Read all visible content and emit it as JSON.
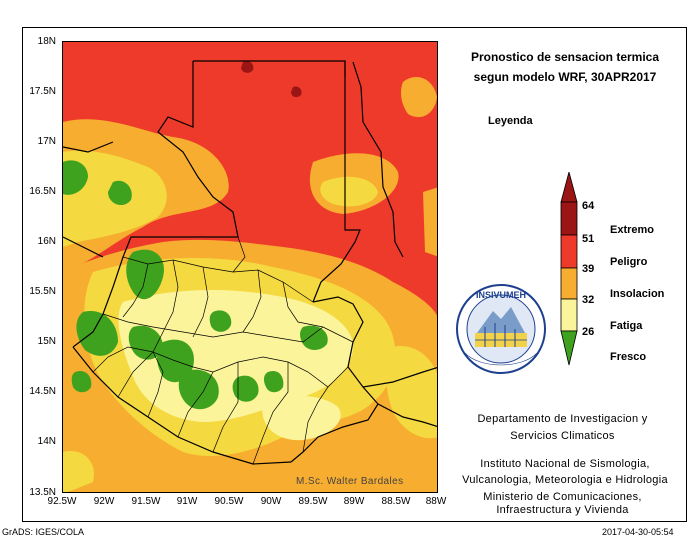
{
  "map": {
    "y_ticks": [
      "18N",
      "17.5N",
      "17N",
      "16.5N",
      "16N",
      "15.5N",
      "15N",
      "14.5N",
      "14N",
      "13.5N"
    ],
    "x_ticks": [
      "92.5W",
      "92W",
      "91.5W",
      "91W",
      "90.5W",
      "90W",
      "89.5W",
      "89W",
      "88.5W",
      "88W"
    ],
    "colors": {
      "extremo": "#9b1515",
      "peligro": "#ee3a2a",
      "insolacion": "#f7ad2f",
      "fatiga": "#f5d940",
      "fatiga_light": "#fbf49a",
      "fresco": "#3fa21e",
      "border": "#000000"
    }
  },
  "title": {
    "line1": "Pronostico de sensacion termica",
    "line2": "segun modelo WRF, 30APR2017"
  },
  "legend": {
    "title": "Leyenda",
    "values": [
      "64",
      "51",
      "39",
      "32",
      "26"
    ],
    "categories": [
      "Extremo",
      "Peligro",
      "Insolacion",
      "Fatiga",
      "Fresco"
    ]
  },
  "logo": {
    "text": "INSIVUMEH"
  },
  "info": {
    "dept_line1": "Departamento de Investigacion y",
    "dept_line2": "Servicios Climaticos",
    "inst_line1": "Instituto Nacional de Sismologia,",
    "inst_line2": "Vulcanologia, Meteorologia e Hidrologia",
    "min_line1": "Ministerio de Comunicaciones,",
    "min_line2": "Infraestructura y Vivienda"
  },
  "credit": "M.Sc. Walter Bardales",
  "footer": {
    "left": "GrADS: IGES/COLA",
    "right": "2017-04-30-05:54"
  }
}
